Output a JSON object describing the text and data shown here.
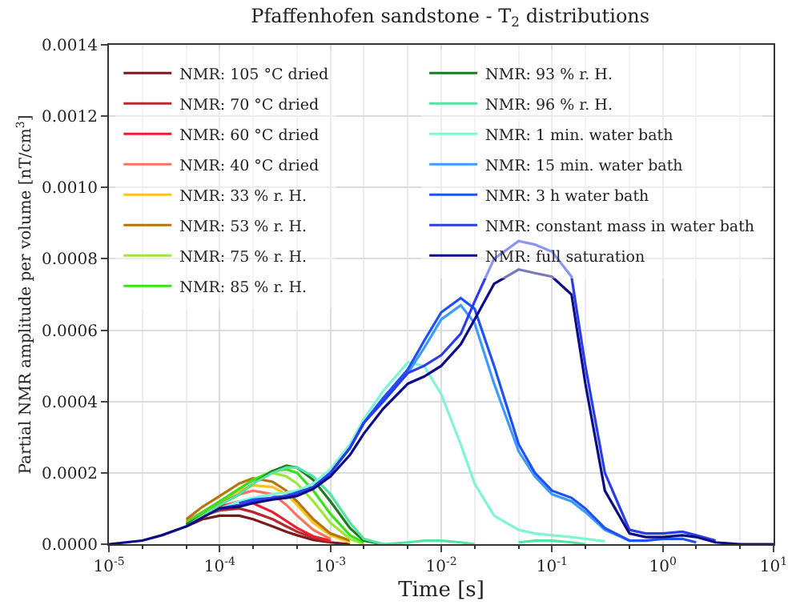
{
  "chart_data": {
    "type": "line",
    "title": "Pfaffenhofen sandstone - T$_{2}$ distributions",
    "xlabel": "Time [s]",
    "ylabel": "Partial NMR amplitude per volume [nT/cm$^{3}$]",
    "log": "x",
    "grid": true,
    "legend": "top left",
    "line_style": "solid",
    "marker": "none",
    "xlim": [
      1e-05,
      10
    ],
    "ylim": [
      0,
      0.0014
    ],
    "xticks": [
      {
        "value": 1e-05,
        "label": "10$^{-5}$"
      },
      {
        "value": 0.0001,
        "label": "10$^{-4}$"
      },
      {
        "value": 0.001,
        "label": "10$^{-3}$"
      },
      {
        "value": 0.01,
        "label": "10$^{-2}$"
      },
      {
        "value": 0.1,
        "label": "10$^{-1}$"
      },
      {
        "value": 1,
        "label": "10$^{0}$"
      },
      {
        "value": 10,
        "label": "10$^{1}$"
      }
    ],
    "yticks": [
      {
        "value": 0,
        "label": "0.0000"
      },
      {
        "value": 0.0002,
        "label": "0.0002"
      },
      {
        "value": 0.0004,
        "label": "0.0004"
      },
      {
        "value": 0.0006,
        "label": "0.0006"
      },
      {
        "value": 0.0008,
        "label": "0.0008"
      },
      {
        "value": 0.001,
        "label": "0.0010"
      },
      {
        "value": 0.0012,
        "label": "0.0012"
      },
      {
        "value": 0.0014,
        "label": "0.0014"
      }
    ],
    "x": [
      1e-05,
      2e-05,
      3e-05,
      5e-05,
      7e-05,
      0.0001,
      0.00015,
      0.0002,
      0.0003,
      0.0004,
      0.0005,
      0.0007,
      0.001,
      0.0015,
      0.002,
      0.003,
      0.005,
      0.007,
      0.01,
      0.015,
      0.02,
      0.03,
      0.05,
      0.07,
      0.1,
      0.15,
      0.2,
      0.3,
      0.5,
      0.7,
      1,
      1.5,
      2,
      3,
      5,
      10
    ],
    "series": [
      {
        "name": "NMR: 105 °C dried",
        "color": "#7b1a1a",
        "values": [
          null,
          null,
          null,
          5e-05,
          7e-05,
          8e-05,
          8e-05,
          7e-05,
          5e-05,
          3.5e-05,
          2.5e-05,
          1.2e-05,
          5e-06,
          0,
          null,
          null,
          null,
          null,
          null,
          null,
          null,
          null,
          null,
          null,
          null,
          null,
          null,
          null,
          null,
          null,
          null,
          null,
          null,
          null,
          null,
          null
        ]
      },
      {
        "name": "NMR: 70 °C dried",
        "color": "#b5282e",
        "values": [
          null,
          null,
          null,
          5.5e-05,
          8e-05,
          9.5e-05,
          0.0001,
          9e-05,
          7e-05,
          5e-05,
          3.5e-05,
          1.8e-05,
          7e-06,
          null,
          null,
          null,
          null,
          null,
          null,
          null,
          null,
          null,
          null,
          null,
          null,
          null,
          null,
          null,
          null,
          null,
          null,
          null,
          null,
          null,
          null,
          null
        ]
      },
      {
        "name": "NMR: 60 °C dried",
        "color": "#ee1c2e",
        "values": [
          null,
          null,
          null,
          6e-05,
          8.5e-05,
          0.000105,
          0.00012,
          0.000115,
          9e-05,
          6.5e-05,
          4.5e-05,
          2.2e-05,
          1e-05,
          null,
          null,
          null,
          null,
          null,
          null,
          null,
          null,
          null,
          null,
          null,
          null,
          null,
          null,
          null,
          null,
          null,
          null,
          null,
          null,
          null,
          null,
          null
        ]
      },
      {
        "name": "NMR: 40 °C dried",
        "color": "#f8735e",
        "values": [
          null,
          null,
          null,
          6.5e-05,
          9e-05,
          0.000115,
          0.00014,
          0.00015,
          0.00014,
          0.00011,
          8e-05,
          4e-05,
          1.5e-05,
          null,
          null,
          null,
          null,
          null,
          null,
          null,
          null,
          null,
          null,
          null,
          null,
          null,
          null,
          null,
          null,
          null,
          null,
          null,
          null,
          null,
          null,
          null
        ]
      },
      {
        "name": "NMR: 33 % r. H.",
        "color": "#f5c518",
        "values": [
          null,
          null,
          null,
          6e-05,
          9e-05,
          0.00012,
          0.00015,
          0.000165,
          0.00016,
          0.00014,
          0.00011,
          6e-05,
          2.5e-05,
          5e-06,
          null,
          null,
          null,
          null,
          null,
          null,
          null,
          null,
          null,
          null,
          null,
          null,
          null,
          null,
          null,
          null,
          null,
          null,
          null,
          null,
          null,
          null
        ]
      },
      {
        "name": "NMR: 53 % r. H.",
        "color": "#b8730f",
        "values": [
          null,
          null,
          null,
          7e-05,
          0.000105,
          0.000135,
          0.00017,
          0.000185,
          0.000175,
          0.00015,
          0.00012,
          7e-05,
          3e-05,
          1e-05,
          null,
          null,
          null,
          null,
          null,
          null,
          null,
          null,
          null,
          null,
          null,
          null,
          null,
          null,
          null,
          null,
          null,
          null,
          null,
          null,
          null,
          null
        ]
      },
      {
        "name": "NMR: 75 % r. H.",
        "color": "#9ce83a",
        "values": [
          null,
          null,
          null,
          6e-05,
          9e-05,
          0.00012,
          0.000155,
          0.00018,
          0.0002,
          0.00019,
          0.00017,
          0.00012,
          6e-05,
          1.5e-05,
          0,
          null,
          null,
          null,
          null,
          null,
          null,
          null,
          null,
          null,
          null,
          null,
          null,
          null,
          null,
          null,
          null,
          null,
          null,
          null,
          null,
          null
        ]
      },
      {
        "name": "NMR: 85 % r. H.",
        "color": "#3be01c",
        "values": [
          null,
          null,
          null,
          6e-05,
          9e-05,
          0.00012,
          0.000155,
          0.00018,
          0.000205,
          0.00021,
          0.0002,
          0.00015,
          8.5e-05,
          2.5e-05,
          5e-06,
          null,
          null,
          null,
          null,
          null,
          null,
          null,
          null,
          null,
          null,
          null,
          null,
          null,
          null,
          null,
          null,
          null,
          null,
          null,
          null,
          null
        ]
      },
      {
        "name": "NMR: 93 % r. H.",
        "color": "#1f7a1f",
        "values": [
          null,
          null,
          null,
          5.5e-05,
          8e-05,
          0.00011,
          0.00014,
          0.00017,
          0.000205,
          0.00022,
          0.000215,
          0.00018,
          0.00012,
          4.5e-05,
          1e-05,
          0,
          null,
          null,
          null,
          null,
          null,
          null,
          null,
          null,
          null,
          null,
          null,
          null,
          null,
          null,
          null,
          null,
          null,
          null,
          null,
          null
        ]
      },
      {
        "name": "NMR: 96 % r. H.",
        "color": "#55e3a0",
        "values": [
          null,
          null,
          null,
          5e-05,
          8e-05,
          0.00011,
          0.00014,
          0.00017,
          0.0002,
          0.000215,
          0.000215,
          0.00019,
          0.00014,
          6e-05,
          1.5e-05,
          0,
          5e-06,
          1e-05,
          1e-05,
          5e-06,
          0,
          null,
          5e-06,
          1e-05,
          1e-05,
          5e-06,
          0,
          null,
          null,
          null,
          null,
          null,
          null,
          null,
          null,
          null
        ]
      },
      {
        "name": "NMR: 1 min. water bath",
        "color": "#7ff5d6",
        "values": [
          null,
          null,
          null,
          null,
          7.5e-05,
          0.0001,
          0.00012,
          0.00013,
          0.00014,
          0.000145,
          0.00015,
          0.00017,
          0.00021,
          0.00028,
          0.00035,
          0.00043,
          0.00051,
          0.0005,
          0.00042,
          0.00028,
          0.00017,
          8e-05,
          4e-05,
          3e-05,
          2.5e-05,
          2e-05,
          1.5e-05,
          8e-06,
          null,
          null,
          null,
          null,
          null,
          null,
          null,
          null
        ]
      },
      {
        "name": "NMR: 15 min. water bath",
        "color": "#3d9bff",
        "values": [
          null,
          null,
          null,
          null,
          null,
          null,
          0.00011,
          0.00012,
          0.00013,
          0.000135,
          0.00014,
          0.00016,
          0.0002,
          0.00027,
          0.00034,
          0.00041,
          0.00048,
          0.00055,
          0.00063,
          0.00067,
          0.00062,
          0.00045,
          0.00026,
          0.00019,
          0.00014,
          0.00012,
          9e-05,
          4e-05,
          1e-05,
          null,
          null,
          null,
          null,
          null,
          null,
          null
        ]
      },
      {
        "name": "NMR: 3 h water bath",
        "color": "#1f50f5",
        "values": [
          null,
          null,
          null,
          null,
          null,
          null,
          0.000115,
          0.000125,
          0.00013,
          0.000135,
          0.000145,
          0.00016,
          0.0002,
          0.00027,
          0.00034,
          0.00041,
          0.00049,
          0.00057,
          0.00065,
          0.00069,
          0.00066,
          0.0005,
          0.00028,
          0.0002,
          0.00015,
          0.00013,
          0.0001,
          4.5e-05,
          1e-05,
          1e-05,
          1.5e-05,
          1.5e-05,
          5e-06,
          null,
          null,
          null
        ]
      },
      {
        "name": "NMR: constant mass in water bath",
        "color": "#2b3de8",
        "values": [
          null,
          null,
          null,
          null,
          null,
          0.0001,
          0.00011,
          0.00012,
          0.00013,
          0.000135,
          0.00014,
          0.00016,
          0.0002,
          0.00027,
          0.00034,
          0.0004,
          0.00048,
          0.0005,
          0.00053,
          0.00059,
          0.00068,
          0.0008,
          0.00085,
          0.00084,
          0.00082,
          0.00075,
          0.0005,
          0.0002,
          4e-05,
          3e-05,
          3e-05,
          3.5e-05,
          2.5e-05,
          1e-05,
          null,
          null
        ]
      },
      {
        "name": "NMR: full saturation",
        "color": "#0b0b85",
        "values": [
          0,
          1e-05,
          2.5e-05,
          5e-05,
          7.5e-05,
          0.0001,
          0.000105,
          0.000115,
          0.000125,
          0.00013,
          0.000135,
          0.000155,
          0.00019,
          0.00025,
          0.00031,
          0.00038,
          0.00045,
          0.00047,
          0.0005,
          0.00056,
          0.00063,
          0.00073,
          0.00077,
          0.00076,
          0.00075,
          0.0007,
          0.00045,
          0.00015,
          3e-05,
          2e-05,
          2e-05,
          2.5e-05,
          2e-05,
          5e-06,
          0,
          0
        ]
      }
    ]
  }
}
